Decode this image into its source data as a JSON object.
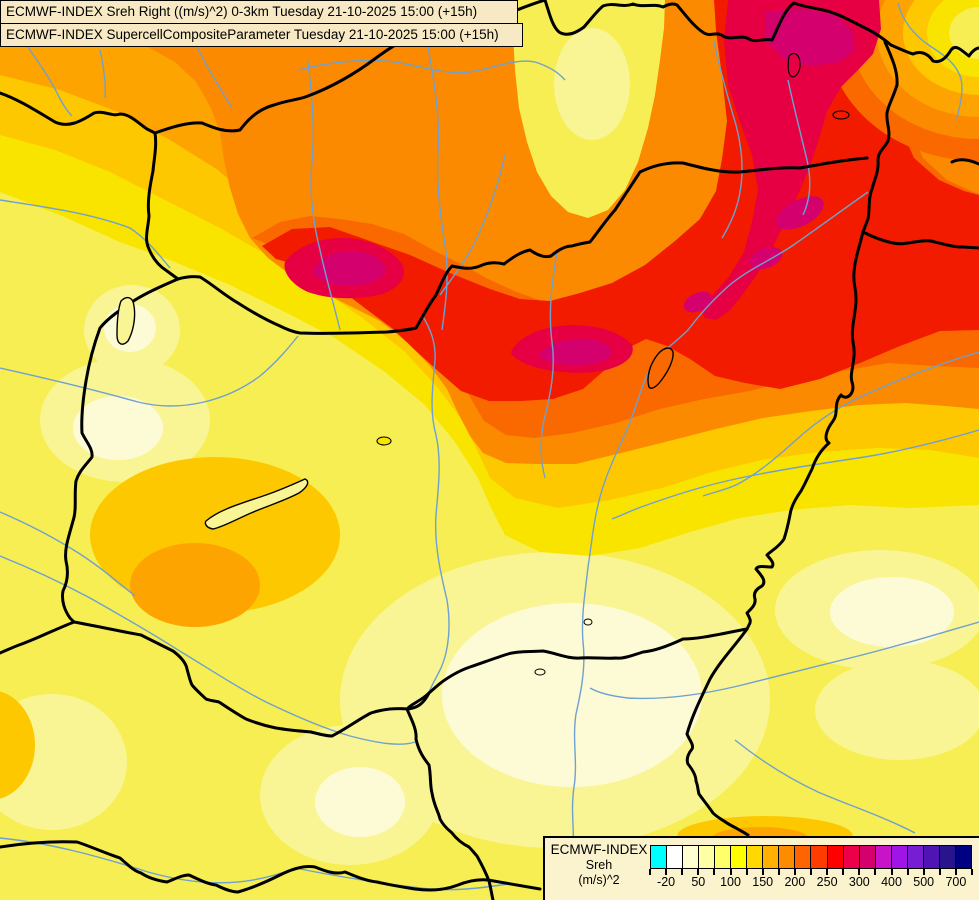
{
  "header": {
    "line1": "ECMWF-INDEX Sreh Right ((m/s)^2) 0-3km Tuesday 21-10-2025 15:00 (+15h)",
    "line2": "ECMWF-INDEX SupercellCompositeParameter Tuesday 21-10-2025 15:00 (+15h)"
  },
  "legend": {
    "title": "ECMWF-INDEX",
    "parameter": "Sreh",
    "units": "(m/s)^2",
    "tick_labels": [
      "-20",
      "50",
      "100",
      "150",
      "200",
      "250",
      "300",
      "400",
      "500",
      "700"
    ],
    "tick_values": [
      -20,
      50,
      100,
      150,
      200,
      250,
      300,
      400,
      500,
      700
    ],
    "palette": [
      "#00FFFF",
      "#FFFFFF",
      "#FFFFD2",
      "#FFFFA6",
      "#FFFF6A",
      "#FFFF00",
      "#FFD800",
      "#FFB000",
      "#FF8C00",
      "#FF6400",
      "#FF3C00",
      "#FF0000",
      "#EE0048",
      "#D4006E",
      "#C814C8",
      "#A014E6",
      "#781ED2",
      "#5014B4",
      "#28148C",
      "#000082"
    ],
    "box_background": "#FAF3CD",
    "border_color": "#000000"
  },
  "map": {
    "field_colors": {
      "palest_yellow": "#FDFBD6",
      "light_yellow": "#F9F594",
      "yellow": "#F6EE52",
      "bright_yellow": "#F9E400",
      "gold": "#FDC800",
      "orange": "#FDA400",
      "deep_orange": "#FB8A00",
      "red_orange": "#F96900",
      "red": "#F21B00",
      "crimson": "#E60043",
      "magenta": "#D4006E"
    },
    "line_colors": {
      "country_border": "#000000",
      "river": "#6FA0D0"
    }
  }
}
